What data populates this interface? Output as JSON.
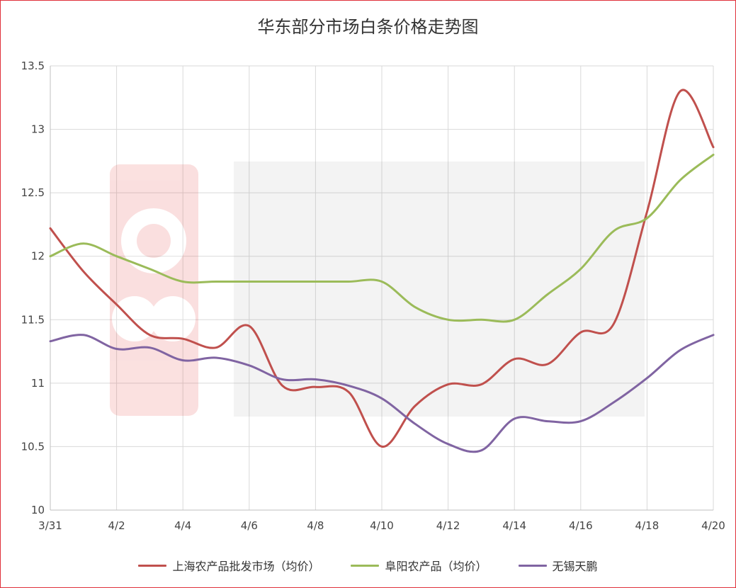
{
  "chart_data": {
    "type": "line",
    "title": "华东部分市场白条价格走势图",
    "x": [
      "3/31",
      "4/1",
      "4/2",
      "4/3",
      "4/4",
      "4/5",
      "4/6",
      "4/7",
      "4/8",
      "4/9",
      "4/10",
      "4/11",
      "4/12",
      "4/13",
      "4/14",
      "4/15",
      "4/16",
      "4/17",
      "4/18",
      "4/19",
      "4/20"
    ],
    "x_tick_labels": [
      "3/31",
      "4/2",
      "4/4",
      "4/6",
      "4/8",
      "4/10",
      "4/12",
      "4/14",
      "4/16",
      "4/18",
      "4/20"
    ],
    "y_tick_labels": [
      "10",
      "10.5",
      "11",
      "11.5",
      "12",
      "12.5",
      "13",
      "13.5"
    ],
    "ylim": [
      10,
      13.5
    ],
    "grid": true,
    "legend_position": "bottom",
    "series": [
      {
        "name": "上海农产品批发市场（均价）",
        "color": "#c0504d",
        "values": [
          12.22,
          11.88,
          11.62,
          11.38,
          11.35,
          11.28,
          11.45,
          10.98,
          10.97,
          10.93,
          10.5,
          10.82,
          10.99,
          10.99,
          11.19,
          11.15,
          11.4,
          11.47,
          12.35,
          13.3,
          12.86
        ]
      },
      {
        "name": "阜阳农产品（均价）",
        "color": "#9bbb59",
        "values": [
          12.0,
          12.1,
          12.0,
          11.9,
          11.8,
          11.8,
          11.8,
          11.8,
          11.8,
          11.8,
          11.8,
          11.6,
          11.5,
          11.5,
          11.5,
          11.7,
          11.9,
          12.2,
          12.3,
          12.6,
          12.8
        ]
      },
      {
        "name": "无锡天鹏",
        "color": "#8064a2",
        "values": [
          11.33,
          11.38,
          11.27,
          11.28,
          11.18,
          11.2,
          11.14,
          11.03,
          11.03,
          10.98,
          10.88,
          10.68,
          10.52,
          10.47,
          10.72,
          10.7,
          10.7,
          10.85,
          11.04,
          11.26,
          11.38
        ]
      }
    ]
  }
}
